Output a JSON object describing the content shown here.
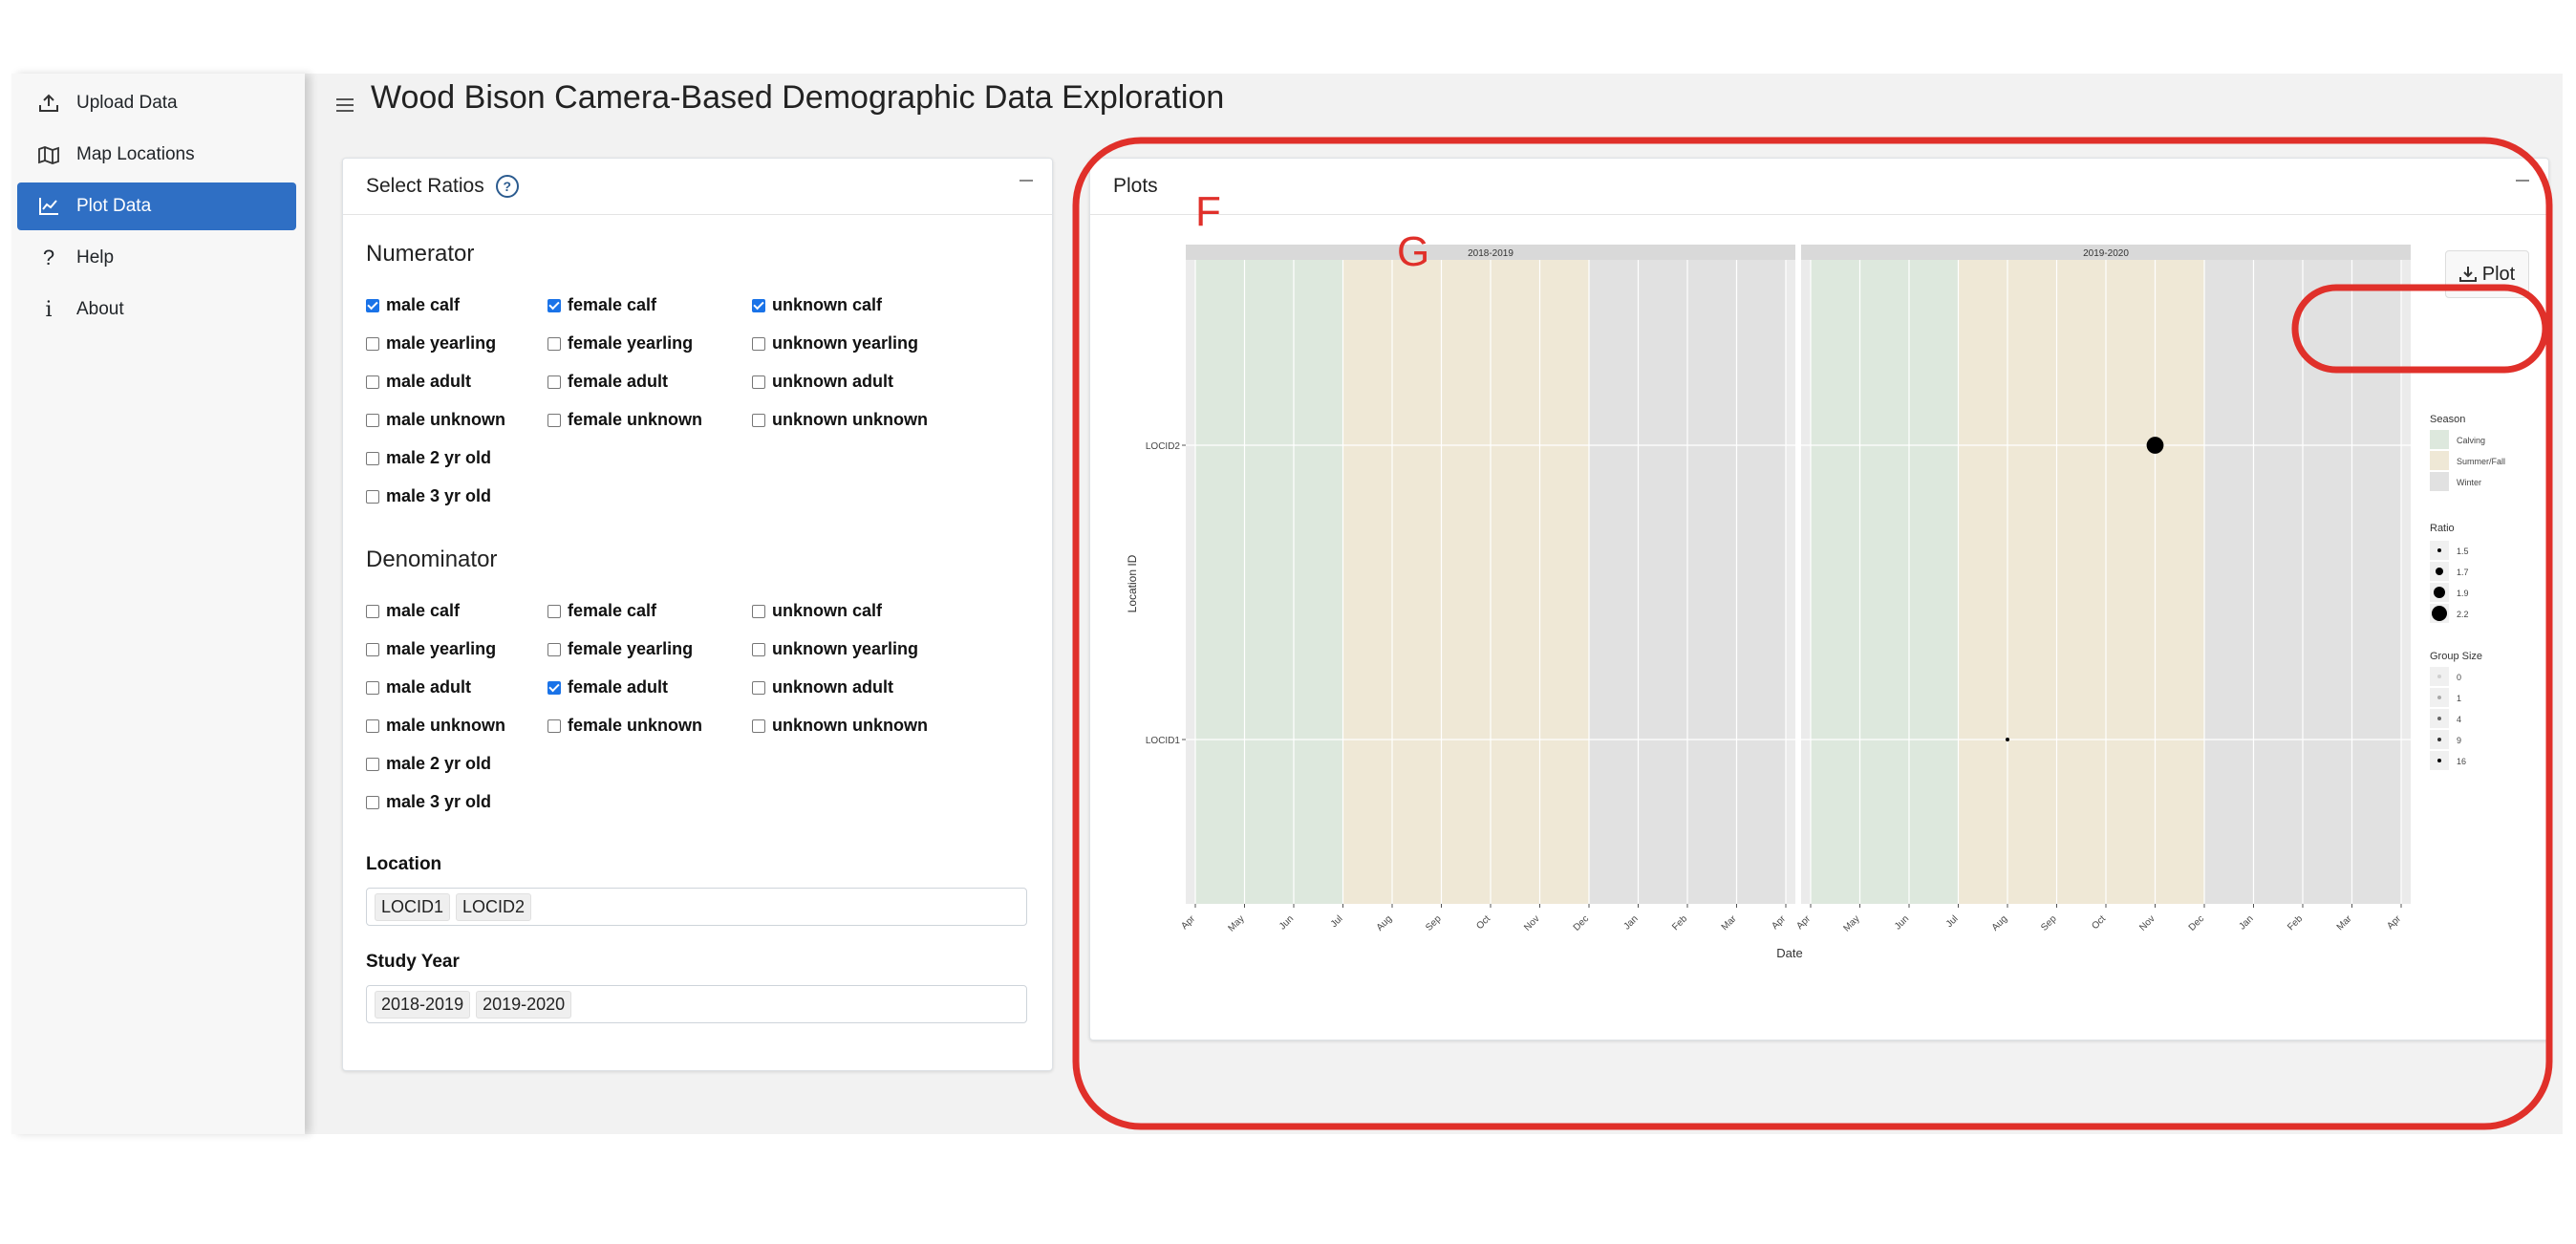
{
  "sidebar": {
    "items": [
      {
        "label": "Upload Data",
        "icon": "upload-icon"
      },
      {
        "label": "Map Locations",
        "icon": "map-icon"
      },
      {
        "label": "Plot Data",
        "icon": "chart-icon",
        "active": true
      },
      {
        "label": "Help",
        "icon": "question-icon"
      },
      {
        "label": "About",
        "icon": "info-icon"
      }
    ]
  },
  "header": {
    "title": "Wood Bison Camera-Based Demographic Data Exploration"
  },
  "ratios": {
    "title": "Select Ratios",
    "numerator_label": "Numerator",
    "denominator_label": "Denominator",
    "numerator": [
      {
        "label": "male calf",
        "checked": true
      },
      {
        "label": "female calf",
        "checked": true
      },
      {
        "label": "unknown calf",
        "checked": true
      },
      {
        "label": "male yearling",
        "checked": false
      },
      {
        "label": "female yearling",
        "checked": false
      },
      {
        "label": "unknown yearling",
        "checked": false
      },
      {
        "label": "male adult",
        "checked": false
      },
      {
        "label": "female adult",
        "checked": false
      },
      {
        "label": "unknown adult",
        "checked": false
      },
      {
        "label": "male unknown",
        "checked": false
      },
      {
        "label": "female unknown",
        "checked": false
      },
      {
        "label": "unknown unknown",
        "checked": false
      },
      {
        "label": "male 2 yr old",
        "checked": false
      },
      {
        "label": "male 3 yr old",
        "checked": false
      }
    ],
    "denominator": [
      {
        "label": "male calf",
        "checked": false
      },
      {
        "label": "female calf",
        "checked": false
      },
      {
        "label": "unknown calf",
        "checked": false
      },
      {
        "label": "male yearling",
        "checked": false
      },
      {
        "label": "female yearling",
        "checked": false
      },
      {
        "label": "unknown yearling",
        "checked": false
      },
      {
        "label": "male adult",
        "checked": false
      },
      {
        "label": "female adult",
        "checked": true
      },
      {
        "label": "unknown adult",
        "checked": false
      },
      {
        "label": "male unknown",
        "checked": false
      },
      {
        "label": "female unknown",
        "checked": false
      },
      {
        "label": "unknown unknown",
        "checked": false
      },
      {
        "label": "male 2 yr old",
        "checked": false
      },
      {
        "label": "male 3 yr old",
        "checked": false
      }
    ],
    "location_label": "Location",
    "locations": [
      "LOCID1",
      "LOCID2"
    ],
    "study_year_label": "Study Year",
    "study_years": [
      "2018-2019",
      "2019-2020"
    ]
  },
  "plots": {
    "title": "Plots",
    "download_label": "Plot"
  },
  "annotations": {
    "f": "F",
    "g": "G",
    "color": "#e0302a"
  },
  "chart_data": {
    "type": "scatter",
    "xlabel": "Date",
    "ylabel": "Location ID",
    "facets": [
      "2018-2019",
      "2019-2020"
    ],
    "x_ticks": [
      "Apr",
      "May",
      "Jun",
      "Jul",
      "Aug",
      "Sep",
      "Oct",
      "Nov",
      "Dec",
      "Jan",
      "Feb",
      "Mar",
      "Apr"
    ],
    "y_categories": [
      "LOCID1",
      "LOCID2"
    ],
    "seasons": [
      {
        "name": "Calving",
        "start_month": 0,
        "end_month": 3,
        "color": "#dde8dd"
      },
      {
        "name": "Summer/Fall",
        "start_month": 3,
        "end_month": 8,
        "color": "#efe8d6"
      },
      {
        "name": "Winter",
        "start_month": 8,
        "end_month": 12,
        "color": "#e1e1e1"
      }
    ],
    "points": [
      {
        "facet": "2019-2020",
        "location": "LOCID2",
        "date": "2019-11-01",
        "ratio": 2.2
      },
      {
        "facet": "2019-2020",
        "location": "LOCID1",
        "date": "2019-08-01",
        "ratio": 1.5,
        "group_size": 1
      }
    ],
    "legend": {
      "season_title": "Season",
      "season_items": [
        "Calving",
        "Summer/Fall",
        "Winter"
      ],
      "ratio_title": "Ratio",
      "ratio_items": [
        1.5,
        1.7,
        1.9,
        2.2
      ],
      "group_title": "Group Size",
      "group_items": [
        0,
        1,
        4,
        9,
        16
      ]
    }
  }
}
